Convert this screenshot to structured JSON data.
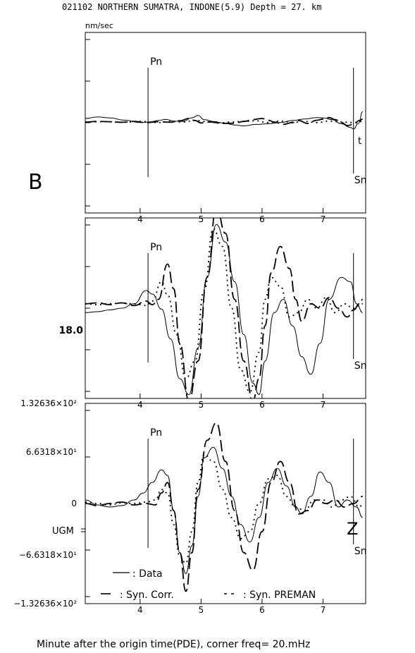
{
  "header": {
    "title": "021102 NORTHERN SUMATRA, INDONE(5.9)  Depth =  27. km",
    "units": "nm/sec",
    "panel_letter": "B",
    "xlabel": "Minute after the origin time(PDE), corner freq= 20.mHz"
  },
  "chart_data": {
    "type": "line",
    "x_range": [
      3.1,
      7.7
    ],
    "x_ticks": [
      "4",
      "5",
      "6",
      "7"
    ],
    "legend": {
      "data_label": ": Data",
      "syn_corr_label": ": Syn. Corr.",
      "syn_preman_label": ": Syn. PREMAN"
    },
    "panels": [
      {
        "name": "top",
        "phase_labels": [
          "Pn",
          "Sn"
        ],
        "phase_times": [
          4.13,
          7.5
        ],
        "component": "t",
        "y_range": [
          -1,
          1
        ],
        "series": [
          {
            "style": "solid",
            "x": [
              3.1,
              3.3,
              3.5,
              3.75,
              4.0,
              4.15,
              4.3,
              4.42,
              4.55,
              4.7,
              4.85,
              4.95,
              5.05,
              5.2,
              5.4,
              5.55,
              5.7,
              5.9,
              6.1,
              6.3,
              6.5,
              6.7,
              6.9,
              7.0,
              7.15,
              7.3,
              7.45,
              7.5,
              7.58,
              7.65
            ],
            "y": [
              0.12,
              0.17,
              0.14,
              0.06,
              -0.02,
              0.0,
              0.05,
              0.09,
              0.03,
              0.02,
              0.14,
              0.22,
              0.08,
              0.02,
              -0.05,
              -0.1,
              -0.13,
              -0.08,
              -0.06,
              -0.02,
              0.05,
              0.1,
              0.15,
              0.14,
              0.08,
              -0.06,
              -0.18,
              -0.24,
              -0.05,
              0.35
            ]
          },
          {
            "style": "dash",
            "x": [
              3.1,
              3.3,
              3.5,
              3.7,
              3.9,
              4.1,
              4.3,
              4.5,
              4.65,
              4.8,
              4.9,
              5.0,
              5.15,
              5.35,
              5.55,
              5.7,
              5.85,
              6.0,
              6.1,
              6.2,
              6.35,
              6.5,
              6.6,
              6.75,
              6.9,
              7.0,
              7.1,
              7.2,
              7.3,
              7.4,
              7.5,
              7.6,
              7.65
            ],
            "y": [
              0.0,
              0.02,
              0.01,
              -0.01,
              0.02,
              -0.02,
              0.01,
              -0.01,
              0.04,
              0.12,
              0.05,
              -0.03,
              0.0,
              -0.05,
              -0.04,
              0.02,
              0.08,
              0.12,
              0.06,
              0.0,
              -0.08,
              -0.02,
              0.05,
              -0.05,
              0.06,
              0.1,
              0.15,
              0.08,
              -0.02,
              -0.12,
              -0.08,
              0.05,
              0.1
            ]
          },
          {
            "style": "dot",
            "x": [
              3.1,
              3.4,
              3.7,
              4.0,
              4.3,
              4.5,
              4.7,
              4.9,
              5.1,
              5.3,
              5.5,
              5.7,
              5.9,
              6.1,
              6.3,
              6.5,
              6.7,
              6.9,
              7.1,
              7.3,
              7.5,
              7.65
            ],
            "y": [
              0.0,
              0.01,
              -0.01,
              0.02,
              -0.02,
              0.02,
              0.0,
              0.05,
              0.01,
              -0.03,
              0.0,
              0.02,
              0.04,
              -0.02,
              0.03,
              -0.01,
              0.02,
              -0.02,
              0.03,
              0.0,
              -0.02,
              0.02
            ]
          }
        ]
      },
      {
        "name": "middle",
        "phase_labels": [
          "Pn",
          "Sn"
        ],
        "phase_times": [
          4.13,
          7.5
        ],
        "y_tick_label": "18.0",
        "y_range": [
          -1,
          1
        ],
        "series": [
          {
            "style": "solid",
            "x": [
              3.1,
              3.3,
              3.5,
              3.7,
              3.9,
              4.1,
              4.2,
              4.35,
              4.5,
              4.65,
              4.8,
              4.95,
              5.1,
              5.25,
              5.4,
              5.55,
              5.7,
              5.85,
              5.95,
              6.05,
              6.2,
              6.35,
              6.5,
              6.65,
              6.8,
              6.95,
              7.1,
              7.3,
              7.45,
              7.55,
              7.65
            ],
            "y": [
              -0.05,
              -0.04,
              -0.02,
              0.0,
              0.05,
              0.2,
              0.16,
              -0.01,
              -0.35,
              -0.8,
              -0.98,
              -0.45,
              0.35,
              0.95,
              0.75,
              0.3,
              -0.3,
              -0.85,
              -0.98,
              -0.6,
              -0.05,
              0.1,
              -0.2,
              -0.55,
              -0.75,
              -0.4,
              0.1,
              0.35,
              0.3,
              0.05,
              -0.05
            ]
          },
          {
            "style": "dash",
            "x": [
              3.1,
              3.3,
              3.5,
              3.7,
              3.9,
              4.1,
              4.2,
              4.3,
              4.45,
              4.55,
              4.65,
              4.8,
              4.95,
              5.1,
              5.25,
              5.4,
              5.55,
              5.7,
              5.85,
              5.95,
              6.05,
              6.15,
              6.3,
              6.45,
              6.55,
              6.65,
              6.8,
              6.95,
              7.1,
              7.25,
              7.4,
              7.5,
              7.6,
              7.65
            ],
            "y": [
              0.05,
              0.06,
              0.04,
              0.06,
              0.03,
              0.08,
              0.04,
              0.1,
              0.5,
              0.22,
              -0.4,
              -1.05,
              -0.6,
              0.35,
              1.15,
              0.85,
              0.1,
              -0.6,
              -1.05,
              -0.8,
              -0.2,
              0.4,
              0.7,
              0.45,
              0.1,
              -0.15,
              0.05,
              0.0,
              0.12,
              0.0,
              -0.1,
              -0.02,
              0.05,
              0.1
            ]
          },
          {
            "style": "dot",
            "x": [
              3.1,
              3.3,
              3.5,
              3.7,
              3.9,
              4.1,
              4.2,
              4.35,
              4.45,
              4.6,
              4.75,
              4.9,
              5.05,
              5.2,
              5.35,
              5.5,
              5.65,
              5.8,
              5.95,
              6.05,
              6.15,
              6.3,
              6.45,
              6.6,
              6.75,
              6.9,
              7.05,
              7.2,
              7.35,
              7.5,
              7.65
            ],
            "y": [
              0.05,
              0.04,
              0.05,
              0.06,
              0.05,
              0.03,
              0.08,
              0.3,
              0.15,
              -0.3,
              -0.8,
              -0.6,
              0.2,
              0.9,
              0.7,
              0.0,
              -0.7,
              -0.95,
              -0.5,
              0.1,
              0.35,
              0.25,
              -0.1,
              -0.05,
              0.1,
              0.0,
              0.12,
              -0.05,
              0.05,
              0.0,
              0.05
            ]
          }
        ]
      },
      {
        "name": "bottom",
        "phase_labels": [
          "Pn",
          "Sn"
        ],
        "phase_times": [
          4.13,
          7.5
        ],
        "component": "Z",
        "station": "UGM",
        "y_range": [
          -132.636,
          132.636
        ],
        "y_tick_labels": [
          "1.32636×10²",
          "6.6318×10¹",
          "0",
          "−6.6318×10¹",
          "−1.32636×10²"
        ],
        "series": [
          {
            "style": "solid",
            "x": [
              3.1,
              3.3,
              3.5,
              3.7,
              3.9,
              4.05,
              4.2,
              4.35,
              4.45,
              4.55,
              4.65,
              4.75,
              4.85,
              4.95,
              5.05,
              5.2,
              5.35,
              5.5,
              5.65,
              5.8,
              5.95,
              6.1,
              6.25,
              6.4,
              6.55,
              6.65,
              6.8,
              6.95,
              7.1,
              7.25,
              7.4,
              7.55,
              7.65
            ],
            "y": [
              5,
              -2,
              -5,
              -3,
              5,
              15,
              30,
              48,
              40,
              -10,
              -70,
              -100,
              -60,
              10,
              65,
              80,
              50,
              10,
              -30,
              -55,
              -20,
              30,
              50,
              25,
              -5,
              -15,
              10,
              45,
              30,
              -5,
              5,
              -5,
              -20
            ]
          },
          {
            "style": "dash",
            "x": [
              3.1,
              3.3,
              3.5,
              3.7,
              3.9,
              4.1,
              4.25,
              4.35,
              4.45,
              4.55,
              4.65,
              4.75,
              4.85,
              4.95,
              5.1,
              5.25,
              5.4,
              5.55,
              5.7,
              5.85,
              6.0,
              6.15,
              6.3,
              6.45,
              6.6,
              6.75,
              6.9,
              7.05,
              7.2,
              7.35,
              7.5,
              7.65
            ],
            "y": [
              0,
              -3,
              0,
              2,
              -2,
              0,
              -2,
              15,
              30,
              -10,
              -70,
              -125,
              -70,
              20,
              90,
              115,
              60,
              -10,
              -70,
              -95,
              -40,
              30,
              60,
              30,
              -15,
              -10,
              5,
              0,
              5,
              -5,
              0,
              10
            ]
          },
          {
            "style": "dot",
            "x": [
              3.1,
              3.3,
              3.5,
              3.7,
              3.9,
              4.1,
              4.25,
              4.35,
              4.45,
              4.55,
              4.65,
              4.75,
              4.85,
              4.95,
              5.05,
              5.2,
              5.35,
              5.5,
              5.65,
              5.8,
              5.95,
              6.1,
              6.25,
              6.4,
              6.55,
              6.7,
              6.85,
              7.0,
              7.15,
              7.3,
              7.45,
              7.6,
              7.65
            ],
            "y": [
              2,
              0,
              -2,
              1,
              0,
              2,
              5,
              20,
              15,
              -30,
              -75,
              -85,
              -40,
              30,
              70,
              60,
              20,
              -20,
              -50,
              -40,
              0,
              35,
              40,
              10,
              -5,
              -10,
              5,
              5,
              -5,
              5,
              10,
              -5,
              0
            ]
          }
        ]
      }
    ]
  }
}
